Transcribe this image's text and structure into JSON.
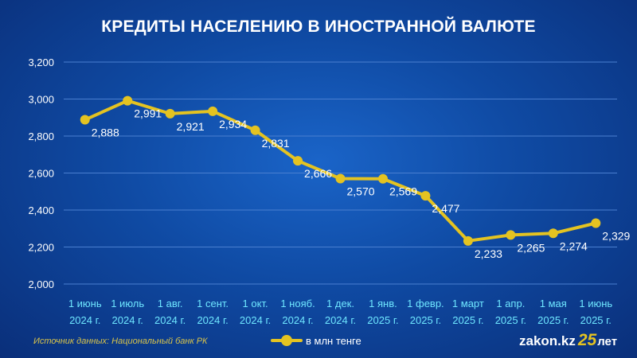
{
  "chart_data": {
    "type": "line",
    "title": "КРЕДИТЫ НАСЕЛЕНИЮ В ИНОСТРАННОЙ ВАЛЮТЕ",
    "categories": [
      [
        "1 июнь",
        "2024 г."
      ],
      [
        "1 июль",
        "2024 г."
      ],
      [
        "1 авг.",
        "2024 г."
      ],
      [
        "1 сент.",
        "2024 г."
      ],
      [
        "1 окт.",
        "2024 г."
      ],
      [
        "1 нояб.",
        "2024 г."
      ],
      [
        "1 дек.",
        "2024 г."
      ],
      [
        "1 янв.",
        "2025 г."
      ],
      [
        "1 февр.",
        "2025 г."
      ],
      [
        "1 март",
        "2025 г."
      ],
      [
        "1 апр.",
        "2025 г."
      ],
      [
        "1 мая",
        "2025 г."
      ],
      [
        "1 июнь",
        "2025 г."
      ]
    ],
    "series": [
      {
        "name": "в млн тенге",
        "values": [
          2888,
          2991,
          2921,
          2934,
          2831,
          2666,
          2570,
          2569,
          2477,
          2233,
          2265,
          2274,
          2329
        ],
        "data_labels": [
          "2,888",
          "2,991",
          "2,921",
          "2,934",
          "2,831",
          "2,666",
          "2,570",
          "2,569",
          "2,477",
          "2,233",
          "2,265",
          "2,274",
          "2,329"
        ]
      }
    ],
    "ylim": [
      2000,
      3200
    ],
    "yticks": [
      2000,
      2200,
      2400,
      2600,
      2800,
      3000,
      3200
    ],
    "ytick_labels": [
      "2,000",
      "2,200",
      "2,400",
      "2,600",
      "2,800",
      "3,000",
      "3,200"
    ],
    "grid": true,
    "legend_position": "bottom"
  },
  "footer": {
    "source": "Источник данных: Национальный банк РК",
    "logo_text": "zakon.kz",
    "logo_number": "25",
    "logo_suffix": "лет"
  },
  "colors": {
    "line": "#e4c321",
    "grid": "#4a7fd0",
    "axis_text": "#ffffff",
    "category_text": "#6ee6ff"
  }
}
